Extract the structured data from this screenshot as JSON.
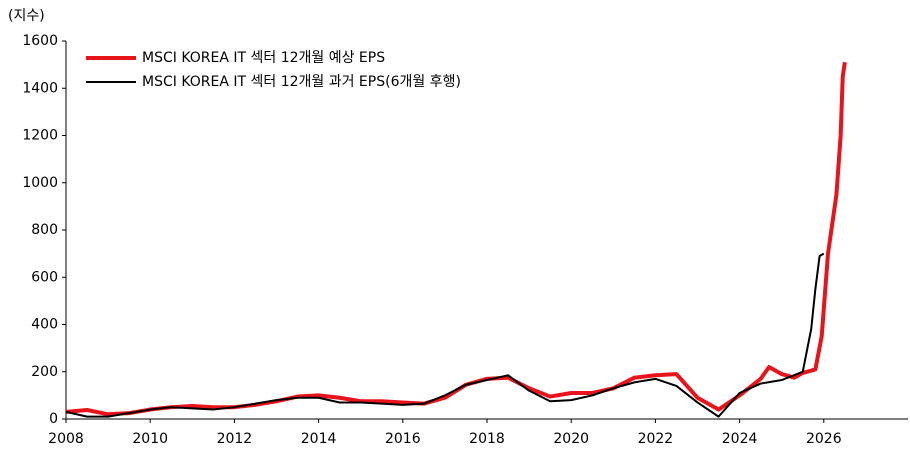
{
  "chart_data": {
    "type": "line",
    "y_label": "(지수)",
    "xlim": [
      2008,
      2028
    ],
    "xticks": [
      2008,
      2010,
      2012,
      2014,
      2016,
      2018,
      2020,
      2022,
      2024,
      2026
    ],
    "ylim": [
      0,
      1600
    ],
    "yticks": [
      0,
      200,
      400,
      600,
      800,
      1000,
      1200,
      1400,
      1600
    ],
    "legend": "upper left",
    "series": [
      {
        "name": "MSCI KOREA IT 섹터 12개월 예상 EPS",
        "color": "#e8141b",
        "width": 4,
        "x": [
          2008,
          2008.5,
          2009,
          2009.5,
          2010,
          2010.5,
          2011,
          2011.5,
          2012,
          2012.5,
          2013,
          2013.5,
          2014,
          2014.5,
          2015,
          2015.5,
          2016,
          2016.5,
          2017,
          2017.5,
          2018,
          2018.5,
          2019,
          2019.5,
          2020,
          2020.5,
          2021,
          2021.5,
          2022,
          2022.5,
          2023,
          2023.5,
          2024,
          2024.5,
          2024.7,
          2025,
          2025.3,
          2025.5,
          2025.8,
          2025.95,
          2026.1,
          2026.3,
          2026.4,
          2026.45,
          2026.5
        ],
        "values": [
          30,
          38,
          20,
          25,
          40,
          50,
          55,
          50,
          50,
          60,
          75,
          95,
          100,
          90,
          75,
          75,
          70,
          65,
          90,
          145,
          170,
          175,
          130,
          95,
          110,
          110,
          130,
          175,
          185,
          190,
          90,
          40,
          100,
          170,
          220,
          190,
          175,
          195,
          210,
          350,
          700,
          950,
          1200,
          1450,
          1510
        ]
      },
      {
        "name": "MSCI KOREA IT 섹터 12개월 과거 EPS(6개월 후행)",
        "color": "#000000",
        "width": 2,
        "x": [
          2008,
          2008.5,
          2009,
          2009.5,
          2010,
          2010.5,
          2011,
          2011.5,
          2012,
          2012.5,
          2013,
          2013.5,
          2014,
          2014.5,
          2015,
          2015.5,
          2016,
          2016.5,
          2017,
          2017.5,
          2018,
          2018.5,
          2019,
          2019.5,
          2020,
          2020.5,
          2021,
          2021.5,
          2022,
          2022.5,
          2023,
          2023.5,
          2024,
          2024.5,
          2025,
          2025.5,
          2025.7,
          2025.8,
          2025.9,
          2026
        ],
        "values": [
          30,
          10,
          10,
          25,
          40,
          50,
          45,
          40,
          50,
          65,
          80,
          90,
          90,
          70,
          70,
          65,
          60,
          65,
          100,
          145,
          165,
          185,
          120,
          75,
          80,
          100,
          130,
          155,
          170,
          140,
          70,
          10,
          110,
          150,
          165,
          200,
          380,
          550,
          690,
          700
        ]
      }
    ]
  }
}
